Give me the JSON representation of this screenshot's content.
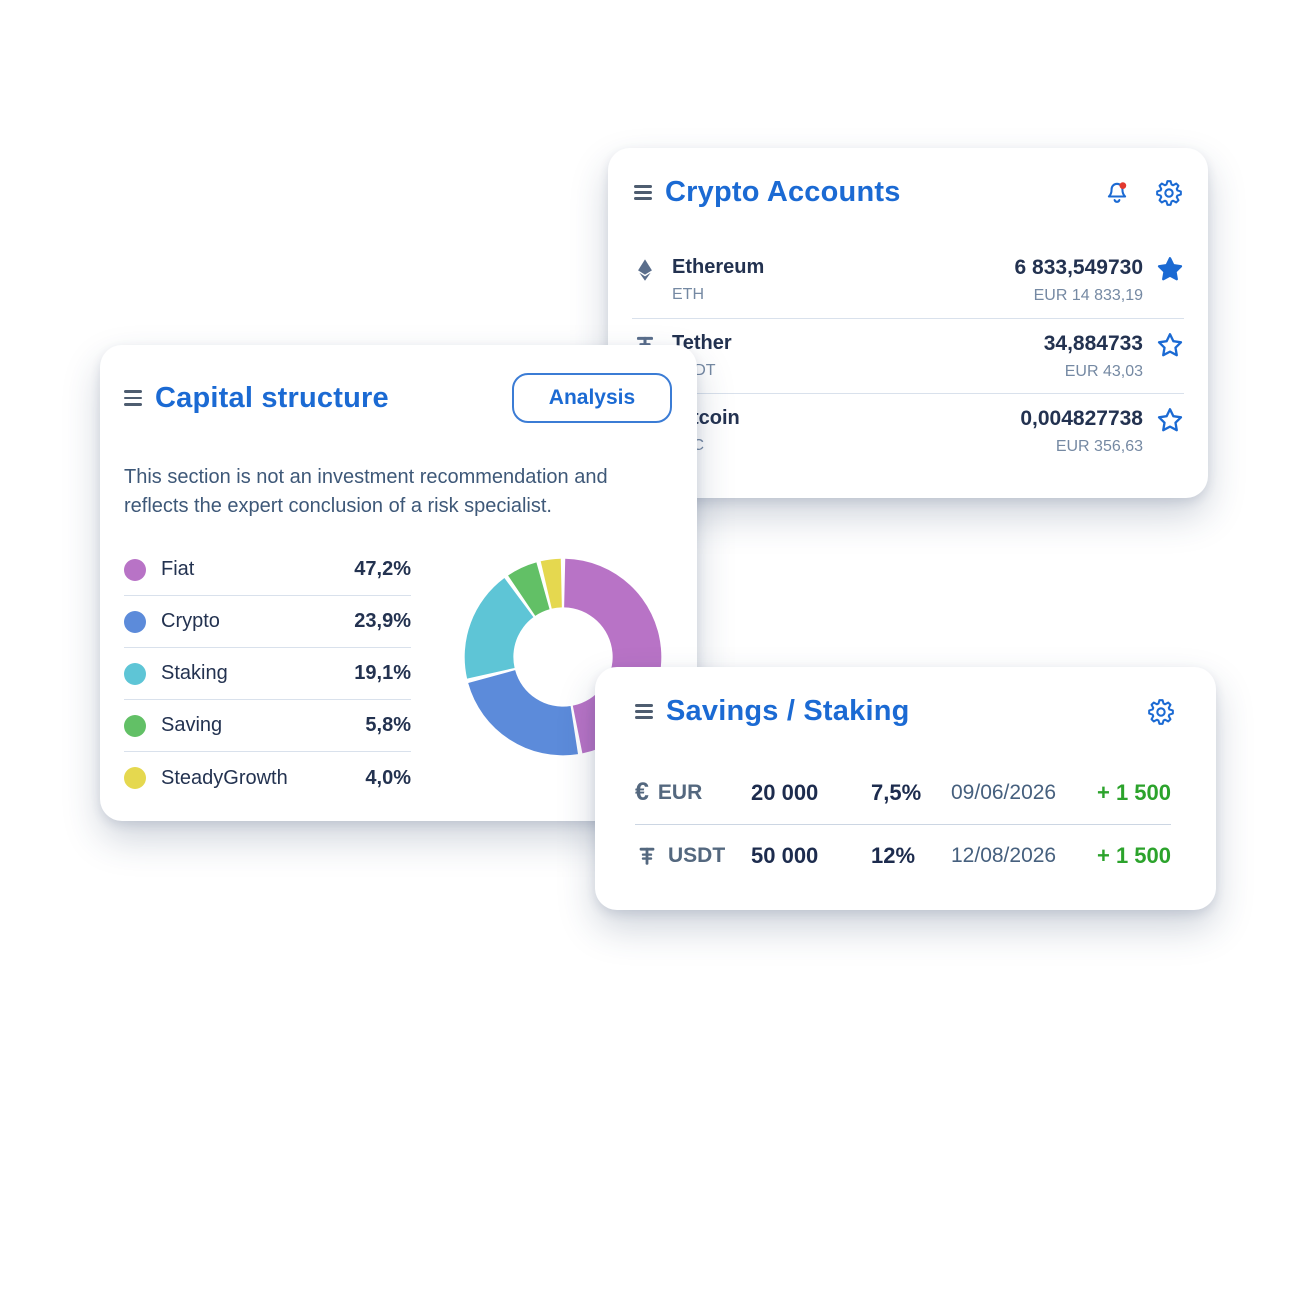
{
  "colors": {
    "accent": "#1b6ad3",
    "navy": "#233250",
    "slate": "#54687f",
    "muted": "#7589a3",
    "paragraph": "#3e5878",
    "green": "#2ca32c",
    "alert_red": "#e2392f",
    "divider": "#d9e1ec"
  },
  "icons": {
    "menu": "trigram-three-lines",
    "bell": "bell-outline-with-red-dot",
    "gear": "cog-outline",
    "star_filled": "star-filled",
    "star_outline": "star-outline",
    "ethereum": "eth-diamond",
    "euro_symbol": "€",
    "tether_symbol": "₮"
  },
  "cards": {
    "crypto_accounts": {
      "title": "Crypto Accounts",
      "rows": [
        {
          "name": "Ethereum",
          "code": "ETH",
          "amount": "6 833,549730",
          "eur": "EUR 14 833,19",
          "starred": true
        },
        {
          "name": "Tether",
          "code": "USDT",
          "amount": "34,884733",
          "eur": "EUR 43,03",
          "starred": false
        },
        {
          "name": "Bitcoin",
          "code": "BTC",
          "amount": "0,004827738",
          "eur": "EUR 356,63",
          "starred": false
        }
      ]
    },
    "capital_structure": {
      "title": "Capital structure",
      "analysis_label": "Analysis",
      "description": "This section is not an investment recommendation and reflects the expert conclusion of a risk specialist."
    },
    "savings_staking": {
      "title": "Savings / Staking",
      "rows": [
        {
          "symbol": "€",
          "currency": "EUR",
          "amount": "20 000",
          "rate": "7,5%",
          "date": "09/06/2026",
          "gain": "+ 1 500"
        },
        {
          "symbol": "₮",
          "currency": "USDT",
          "amount": "50 000",
          "rate": "12%",
          "date": "12/08/2026",
          "gain": "+ 1 500"
        }
      ]
    }
  },
  "chart_data": {
    "type": "pie",
    "donut": true,
    "title": "Capital structure",
    "labels": [
      "Fiat",
      "Crypto",
      "Staking",
      "Saving",
      "SteadyGrowth"
    ],
    "values": [
      47.2,
      23.9,
      19.1,
      5.8,
      4.0
    ],
    "display_values": [
      "47,2%",
      "23,9%",
      "19,1%",
      "5,8%",
      "4,0%"
    ],
    "colors": [
      "#b873c6",
      "#5c8bda",
      "#5ec5d6",
      "#62c066",
      "#e5d84f"
    ],
    "start_angle_deg": -90,
    "direction": "clockwise",
    "inner_radius_ratio": 0.5,
    "legend_position": "left"
  }
}
